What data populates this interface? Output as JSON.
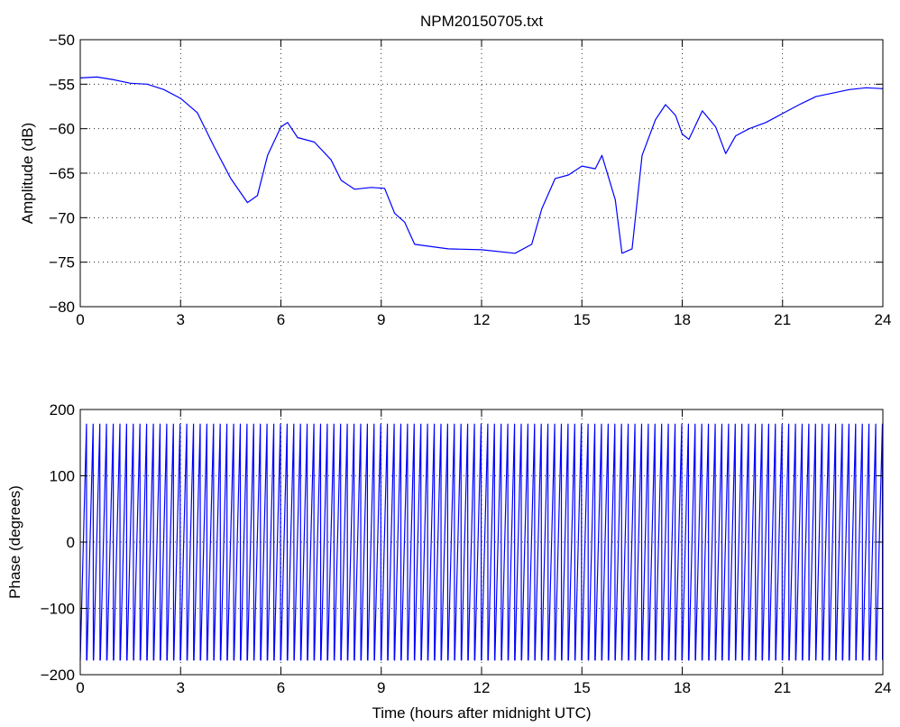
{
  "chart_data": [
    {
      "type": "line",
      "title": "NPM20150705.txt",
      "xlabel": "",
      "ylabel": "Amplitude (dB)",
      "xlim": [
        0,
        24
      ],
      "ylim": [
        -80,
        -50
      ],
      "xticks": [
        0,
        3,
        6,
        9,
        12,
        15,
        18,
        21,
        24
      ],
      "yticks": [
        -50,
        -55,
        -60,
        -65,
        -70,
        -75,
        -80
      ],
      "grid": true,
      "line_color": "#0000ff",
      "series": [
        {
          "x": [
            0,
            0.5,
            1.0,
            1.5,
            2.0,
            2.5,
            3.0,
            3.5,
            4.0,
            4.5,
            5.0,
            5.3,
            5.6,
            6.0,
            6.2,
            6.5,
            7.0,
            7.5,
            7.8,
            8.2,
            8.7,
            9.1,
            9.4,
            9.7,
            10.0,
            11.0,
            12.0,
            13.0,
            13.5,
            13.8,
            14.2,
            14.6,
            15.0,
            15.4,
            15.6,
            16.0,
            16.2,
            16.5,
            16.8,
            17.2,
            17.5,
            17.8,
            18.0,
            18.2,
            18.6,
            19.0,
            19.3,
            19.6,
            20.0,
            20.5,
            21.0,
            21.5,
            22.0,
            22.5,
            23.0,
            23.5,
            24.0
          ],
          "y": [
            -54.3,
            -54.2,
            -54.5,
            -54.9,
            -55.0,
            -55.6,
            -56.6,
            -58.2,
            -62.0,
            -65.6,
            -68.3,
            -67.5,
            -63.0,
            -59.8,
            -59.3,
            -61.0,
            -61.5,
            -63.5,
            -65.8,
            -66.8,
            -66.6,
            -66.7,
            -69.5,
            -70.5,
            -73.0,
            -73.5,
            -73.6,
            -74.0,
            -73.0,
            -69.0,
            -65.6,
            -65.2,
            -64.2,
            -64.5,
            -63.0,
            -68.0,
            -74.0,
            -73.5,
            -63.0,
            -59.0,
            -57.3,
            -58.5,
            -60.6,
            -61.2,
            -58.0,
            -59.8,
            -62.8,
            -60.8,
            -60.0,
            -59.3,
            -58.3,
            -57.3,
            -56.4,
            -56.0,
            -55.6,
            -55.4,
            -55.5
          ]
        }
      ]
    },
    {
      "type": "line",
      "title": "",
      "xlabel": "Time (hours after midnight UTC)",
      "ylabel": "Phase (degrees)",
      "xlim": [
        0,
        24
      ],
      "ylim": [
        -200,
        200
      ],
      "xticks": [
        0,
        3,
        6,
        9,
        12,
        15,
        18,
        21,
        24
      ],
      "yticks": [
        200,
        100,
        0,
        -100,
        -200
      ],
      "grid": true,
      "line_color": "#0000ff",
      "series": [
        {
          "type": "sawtooth",
          "cycles": 120,
          "y_min": -178,
          "y_max": 178
        }
      ]
    }
  ]
}
